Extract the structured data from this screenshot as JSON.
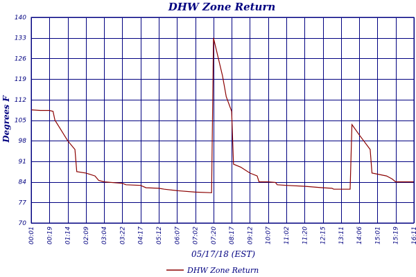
{
  "chart_data": {
    "type": "line",
    "title": "DHW Zone Return",
    "xlabel": "05/17/18 (EST)",
    "ylabel": "Degrees F",
    "ylim": [
      70,
      140
    ],
    "yticks": [
      70,
      77,
      84,
      91,
      98,
      105,
      112,
      119,
      126,
      133,
      140
    ],
    "xticks": [
      "00:01",
      "00:19",
      "01:14",
      "02:09",
      "03:04",
      "03:22",
      "04:17",
      "05:12",
      "06:07",
      "07:02",
      "07:20",
      "08:17",
      "09:12",
      "10:07",
      "11:02",
      "11:20",
      "12:15",
      "13:11",
      "14:06",
      "15:01",
      "15:19",
      "16:11"
    ],
    "grid": true,
    "legend": "bottom",
    "series": [
      {
        "name": "DHW Zone Return",
        "color": "#8b0000",
        "points": [
          [
            0,
            108.5
          ],
          [
            0.5,
            108.3
          ],
          [
            1,
            108.3
          ],
          [
            1.2,
            108.0
          ],
          [
            1.3,
            105.0
          ],
          [
            1.6,
            102.0
          ],
          [
            2,
            98.0
          ],
          [
            2.4,
            95.0
          ],
          [
            2.5,
            87.5
          ],
          [
            3,
            87.0
          ],
          [
            3.5,
            86.0
          ],
          [
            3.7,
            84.5
          ],
          [
            4,
            84.0
          ],
          [
            5,
            83.5
          ],
          [
            5.2,
            83.0
          ],
          [
            6,
            82.8
          ],
          [
            6.3,
            82.0
          ],
          [
            7,
            81.8
          ],
          [
            7.3,
            81.5
          ],
          [
            8,
            81.0
          ],
          [
            9,
            80.5
          ],
          [
            9.9,
            80.3
          ],
          [
            10.0,
            133.0
          ],
          [
            10.5,
            120.0
          ],
          [
            10.7,
            113.0
          ],
          [
            11.0,
            108.0
          ],
          [
            11.1,
            90.0
          ],
          [
            11.5,
            89.0
          ],
          [
            12,
            87.0
          ],
          [
            12.4,
            86.0
          ],
          [
            12.5,
            84.0
          ],
          [
            13,
            84.0
          ],
          [
            13.4,
            83.8
          ],
          [
            13.5,
            83.0
          ],
          [
            14,
            82.8
          ],
          [
            15,
            82.5
          ],
          [
            16,
            82.0
          ],
          [
            16.5,
            81.8
          ],
          [
            16.6,
            81.5
          ],
          [
            17.5,
            81.5
          ],
          [
            17.6,
            103.5
          ],
          [
            18,
            100.0
          ],
          [
            18.6,
            95.0
          ],
          [
            18.7,
            87.0
          ],
          [
            19.5,
            86.0
          ],
          [
            19.8,
            85.0
          ],
          [
            20,
            84.0
          ],
          [
            21,
            84.0
          ]
        ]
      }
    ]
  }
}
